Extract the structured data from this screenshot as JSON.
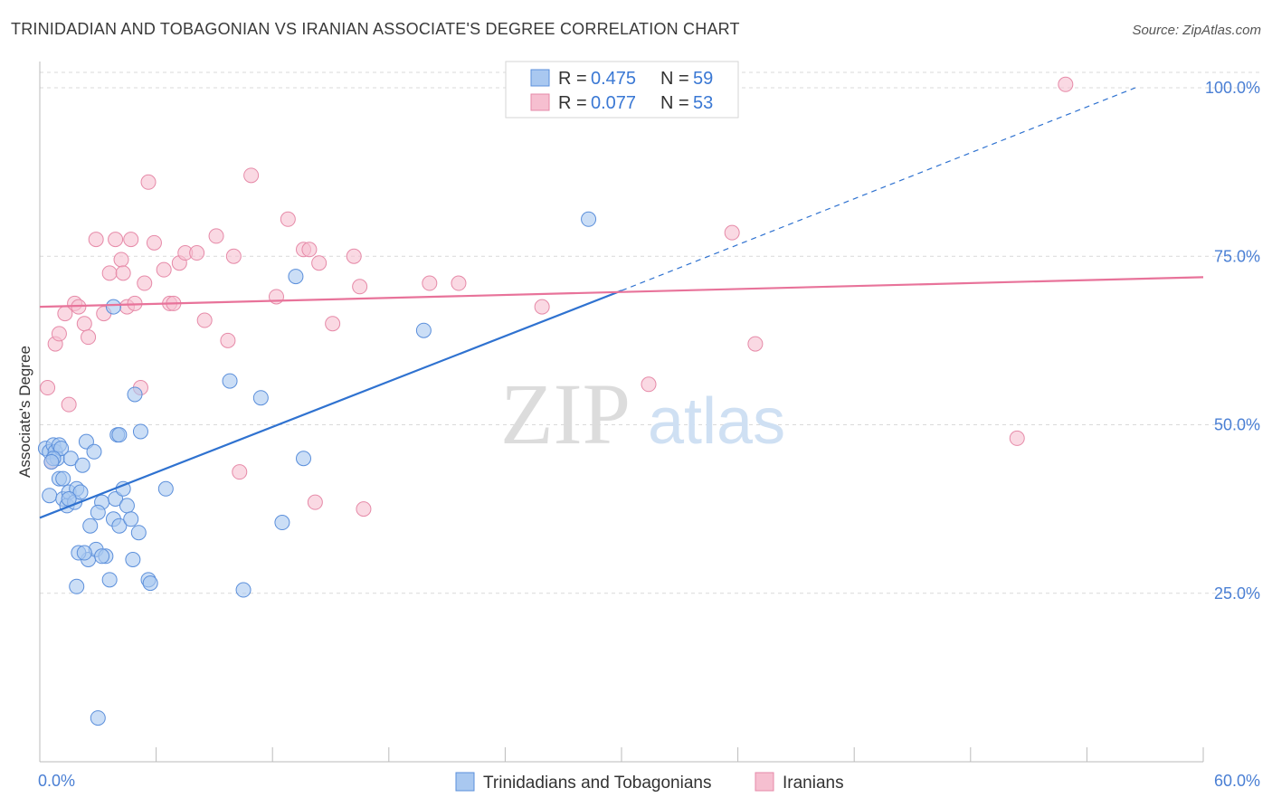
{
  "title": "TRINIDADIAN AND TOBAGONIAN VS IRANIAN ASSOCIATE'S DEGREE CORRELATION CHART",
  "source": "Source: ZipAtlas.com",
  "watermark": {
    "zip": "ZIP",
    "atlas": "atlas"
  },
  "colors": {
    "blue_fill": "#a9c8f0",
    "blue_stroke": "#5b8fdb",
    "blue_line": "#2f72d0",
    "pink_fill": "#f6bfd0",
    "pink_stroke": "#e68aa8",
    "pink_line": "#e8739a",
    "tick_label": "#4a7fd4",
    "grid": "#d9d9d9"
  },
  "legend": {
    "r_label": "R =",
    "n_label": "N =",
    "rows": [
      {
        "r": "0.475",
        "n": "59"
      },
      {
        "r": "0.077",
        "n": "53"
      }
    ]
  },
  "chart_data": {
    "type": "scatter",
    "title": "TRINIDADIAN AND TOBAGONIAN VS IRANIAN ASSOCIATE'S DEGREE CORRELATION CHART",
    "xlabel": "",
    "ylabel": "Associate's Degree",
    "xlim": [
      0,
      60
    ],
    "ylim": [
      0,
      103
    ],
    "x_tick_labels": [
      "0.0%",
      "60.0%"
    ],
    "y_ticks": [
      25,
      50,
      75,
      100
    ],
    "y_tick_labels": [
      "25.0%",
      "50.0%",
      "75.0%",
      "100.0%"
    ],
    "grid": true,
    "legend_position": "top-center",
    "series": [
      {
        "name": "Trinidadians and Tobagonians",
        "color": "#a9c8f0",
        "points": [
          [
            0.3,
            46.5
          ],
          [
            0.5,
            46
          ],
          [
            0.7,
            47
          ],
          [
            0.8,
            46
          ],
          [
            0.9,
            45
          ],
          [
            1.0,
            47
          ],
          [
            1.1,
            46.5
          ],
          [
            0.5,
            39.5
          ],
          [
            1.0,
            42
          ],
          [
            1.2,
            42
          ],
          [
            1.2,
            39
          ],
          [
            1.4,
            38
          ],
          [
            1.5,
            40
          ],
          [
            1.6,
            45
          ],
          [
            1.8,
            38.5
          ],
          [
            1.9,
            40.5
          ],
          [
            2.1,
            40
          ],
          [
            2.2,
            44
          ],
          [
            2.4,
            47.5
          ],
          [
            2.8,
            46
          ],
          [
            2.6,
            35
          ],
          [
            3.2,
            38.5
          ],
          [
            3.0,
            37
          ],
          [
            3.8,
            36
          ],
          [
            3.9,
            39
          ],
          [
            3.6,
            27
          ],
          [
            2.5,
            30
          ],
          [
            2.9,
            31.5
          ],
          [
            2.0,
            31
          ],
          [
            2.3,
            31
          ],
          [
            3.4,
            30.5
          ],
          [
            3.2,
            30.5
          ],
          [
            1.9,
            26
          ],
          [
            4.1,
            35
          ],
          [
            4.5,
            38
          ],
          [
            4.7,
            36
          ],
          [
            4.8,
            30
          ],
          [
            4.3,
            40.5
          ],
          [
            4.0,
            48.5
          ],
          [
            5.1,
            34
          ],
          [
            5.6,
            27
          ],
          [
            5.7,
            26.5
          ],
          [
            5.2,
            49
          ],
          [
            4.9,
            54.5
          ],
          [
            6.5,
            40.5
          ],
          [
            3.8,
            67.5
          ],
          [
            10.5,
            25.5
          ],
          [
            9.8,
            56.5
          ],
          [
            11.4,
            54
          ],
          [
            12.5,
            35.5
          ],
          [
            13.6,
            45
          ],
          [
            13.2,
            72
          ],
          [
            19.8,
            64
          ],
          [
            28.3,
            80.5
          ],
          [
            3.0,
            6.5
          ],
          [
            4.1,
            48.5
          ],
          [
            0.7,
            45
          ],
          [
            0.6,
            44.5
          ],
          [
            1.5,
            39
          ]
        ]
      },
      {
        "name": "Iranians",
        "color": "#f6bfd0",
        "points": [
          [
            0.4,
            55.5
          ],
          [
            0.6,
            44.5
          ],
          [
            0.8,
            62
          ],
          [
            1.0,
            63.5
          ],
          [
            1.3,
            66.5
          ],
          [
            1.5,
            53
          ],
          [
            1.8,
            68
          ],
          [
            2.0,
            67.5
          ],
          [
            2.3,
            65
          ],
          [
            2.5,
            63
          ],
          [
            2.9,
            77.5
          ],
          [
            3.3,
            66.5
          ],
          [
            3.6,
            72.5
          ],
          [
            3.9,
            77.5
          ],
          [
            4.2,
            74.5
          ],
          [
            4.3,
            72.5
          ],
          [
            4.5,
            67.5
          ],
          [
            4.7,
            77.5
          ],
          [
            4.9,
            68
          ],
          [
            5.2,
            55.5
          ],
          [
            5.4,
            71
          ],
          [
            5.6,
            86
          ],
          [
            5.9,
            77
          ],
          [
            6.4,
            73
          ],
          [
            6.7,
            68
          ],
          [
            6.9,
            68
          ],
          [
            7.2,
            74
          ],
          [
            7.5,
            75.5
          ],
          [
            8.1,
            75.5
          ],
          [
            8.5,
            65.5
          ],
          [
            9.1,
            78
          ],
          [
            9.7,
            62.5
          ],
          [
            10.0,
            75
          ],
          [
            10.3,
            43
          ],
          [
            10.9,
            87
          ],
          [
            12.2,
            69
          ],
          [
            12.8,
            80.5
          ],
          [
            13.6,
            76
          ],
          [
            13.9,
            76
          ],
          [
            14.2,
            38.5
          ],
          [
            14.4,
            74
          ],
          [
            15.1,
            65
          ],
          [
            16.2,
            75
          ],
          [
            16.5,
            70.5
          ],
          [
            16.7,
            37.5
          ],
          [
            20.1,
            71
          ],
          [
            21.6,
            71
          ],
          [
            25.9,
            67.5
          ],
          [
            31.4,
            56
          ],
          [
            35.7,
            78.5
          ],
          [
            36.9,
            62
          ],
          [
            50.4,
            48
          ],
          [
            52.9,
            100.5
          ]
        ]
      }
    ],
    "trend_lines": [
      {
        "series": "Trinidadians and Tobagonians",
        "x0": 0,
        "y0": 36.2,
        "x1": 30,
        "y1": 69.9,
        "dashed_to_x": 56.5,
        "dashed_to_y": 100
      },
      {
        "series": "Iranians",
        "x0": 0,
        "y0": 67.5,
        "x1": 60,
        "y1": 71.9
      }
    ]
  },
  "bottom_legend": [
    {
      "label": "Trinidadians and Tobagonians"
    },
    {
      "label": "Iranians"
    }
  ]
}
